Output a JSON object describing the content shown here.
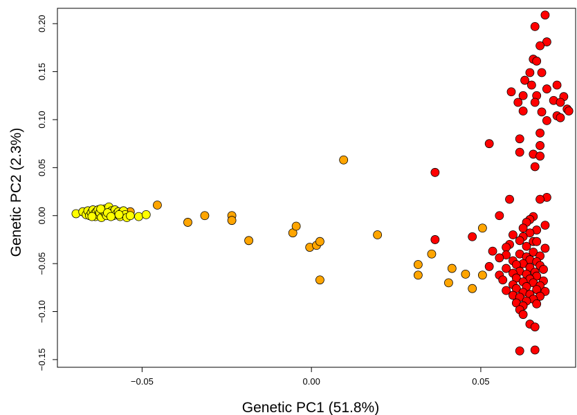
{
  "chart_data": {
    "type": "scatter",
    "xlabel": "Genetic PC1 (51.8%)",
    "ylabel": "Genetic PC2 (2.3%)",
    "xlim": [
      -0.075,
      0.078
    ],
    "ylim": [
      -0.158,
      0.216
    ],
    "xticks": [
      -0.05,
      0.0,
      0.05
    ],
    "xtick_labels": [
      "−0.05",
      "0.00",
      "0.05"
    ],
    "yticks": [
      -0.15,
      -0.1,
      -0.05,
      0.0,
      0.05,
      0.1,
      0.15,
      0.2
    ],
    "ytick_labels": [
      "−0.15",
      "−0.10",
      "−0.05",
      "0.00",
      "0.05",
      "0.10",
      "0.15",
      "0.20"
    ],
    "grid": false,
    "legend": "none",
    "series": [
      {
        "color": "#ff0000",
        "points": [
          [
            0.069,
            0.209
          ],
          [
            0.066,
            0.197
          ],
          [
            0.0695,
            0.181
          ],
          [
            0.0675,
            0.177
          ],
          [
            0.0655,
            0.163
          ],
          [
            0.0665,
            0.161
          ],
          [
            0.0645,
            0.149
          ],
          [
            0.068,
            0.149
          ],
          [
            0.063,
            0.141
          ],
          [
            0.065,
            0.136
          ],
          [
            0.0725,
            0.136
          ],
          [
            0.0695,
            0.132
          ],
          [
            0.059,
            0.129
          ],
          [
            0.0625,
            0.125
          ],
          [
            0.0665,
            0.125
          ],
          [
            0.0745,
            0.124
          ],
          [
            0.0715,
            0.12
          ],
          [
            0.061,
            0.118
          ],
          [
            0.066,
            0.118
          ],
          [
            0.0735,
            0.118
          ],
          [
            0.0755,
            0.111
          ],
          [
            0.076,
            0.109
          ],
          [
            0.0625,
            0.109
          ],
          [
            0.068,
            0.108
          ],
          [
            0.0725,
            0.104
          ],
          [
            0.0735,
            0.102
          ],
          [
            0.0695,
            0.099
          ],
          [
            0.0675,
            0.086
          ],
          [
            0.0615,
            0.08
          ],
          [
            0.0525,
            0.075
          ],
          [
            0.0675,
            0.073
          ],
          [
            0.0615,
            0.066
          ],
          [
            0.0655,
            0.064
          ],
          [
            0.0675,
            0.062
          ],
          [
            0.066,
            0.051
          ],
          [
            0.0365,
            0.045
          ],
          [
            0.0695,
            0.019
          ],
          [
            0.0585,
            0.017
          ],
          [
            0.0675,
            0.017
          ],
          [
            0.0555,
            0.0
          ],
          [
            0.0655,
            -0.001
          ],
          [
            0.0645,
            -0.004
          ],
          [
            0.0635,
            -0.007
          ],
          [
            0.069,
            -0.01
          ],
          [
            0.0625,
            -0.013
          ],
          [
            0.0665,
            -0.015
          ],
          [
            0.0645,
            -0.018
          ],
          [
            0.0595,
            -0.02
          ],
          [
            0.0625,
            -0.022
          ],
          [
            0.0475,
            -0.022
          ],
          [
            0.0365,
            -0.025
          ],
          [
            0.0615,
            -0.026
          ],
          [
            0.0655,
            -0.027
          ],
          [
            0.0665,
            -0.027
          ],
          [
            0.0585,
            -0.03
          ],
          [
            0.0635,
            -0.032
          ],
          [
            0.0575,
            -0.033
          ],
          [
            0.069,
            -0.034
          ],
          [
            0.0535,
            -0.037
          ],
          [
            0.0655,
            -0.038
          ],
          [
            0.0615,
            -0.04
          ],
          [
            0.0575,
            -0.041
          ],
          [
            0.0675,
            -0.042
          ],
          [
            0.0635,
            -0.043
          ],
          [
            0.0555,
            -0.044
          ],
          [
            0.0645,
            -0.046
          ],
          [
            0.0595,
            -0.047
          ],
          [
            0.0665,
            -0.048
          ],
          [
            0.0625,
            -0.05
          ],
          [
            0.0605,
            -0.051
          ],
          [
            0.0675,
            -0.052
          ],
          [
            0.0525,
            -0.053
          ],
          [
            0.0645,
            -0.054
          ],
          [
            0.0575,
            -0.055
          ],
          [
            0.0685,
            -0.056
          ],
          [
            0.0615,
            -0.058
          ],
          [
            0.066,
            -0.059
          ],
          [
            0.0595,
            -0.06
          ],
          [
            0.0635,
            -0.061
          ],
          [
            0.0555,
            -0.062
          ],
          [
            0.0665,
            -0.063
          ],
          [
            0.0605,
            -0.065
          ],
          [
            0.0645,
            -0.066
          ],
          [
            0.0565,
            -0.067
          ],
          [
            0.0685,
            -0.068
          ],
          [
            0.0625,
            -0.069
          ],
          [
            0.0655,
            -0.07
          ],
          [
            0.0595,
            -0.072
          ],
          [
            0.0675,
            -0.073
          ],
          [
            0.0635,
            -0.074
          ],
          [
            0.0605,
            -0.076
          ],
          [
            0.0665,
            -0.077
          ],
          [
            0.0575,
            -0.078
          ],
          [
            0.069,
            -0.079
          ],
          [
            0.0625,
            -0.08
          ],
          [
            0.0645,
            -0.082
          ],
          [
            0.0595,
            -0.083
          ],
          [
            0.0675,
            -0.084
          ],
          [
            0.0615,
            -0.085
          ],
          [
            0.0655,
            -0.087
          ],
          [
            0.0635,
            -0.089
          ],
          [
            0.0605,
            -0.091
          ],
          [
            0.0665,
            -0.092
          ],
          [
            0.0625,
            -0.094
          ],
          [
            0.0615,
            -0.098
          ],
          [
            0.0625,
            -0.103
          ],
          [
            0.0645,
            -0.113
          ],
          [
            0.066,
            -0.116
          ],
          [
            0.0615,
            -0.141
          ],
          [
            0.066,
            -0.14
          ]
        ]
      },
      {
        "color": "#ffa500",
        "points": [
          [
            -0.0455,
            0.011
          ],
          [
            -0.0535,
            0.004
          ],
          [
            -0.0365,
            -0.007
          ],
          [
            -0.0315,
            0.0
          ],
          [
            -0.0235,
            0.0
          ],
          [
            -0.0235,
            -0.005
          ],
          [
            -0.0185,
            -0.026
          ],
          [
            -0.0055,
            -0.018
          ],
          [
            -0.0045,
            -0.011
          ],
          [
            -0.0005,
            -0.033
          ],
          [
            0.0015,
            -0.031
          ],
          [
            0.0025,
            -0.027
          ],
          [
            0.0025,
            -0.067
          ],
          [
            0.0095,
            0.058
          ],
          [
            0.0195,
            -0.02
          ],
          [
            0.0315,
            -0.051
          ],
          [
            0.0315,
            -0.062
          ],
          [
            0.0355,
            -0.04
          ],
          [
            0.0405,
            -0.07
          ],
          [
            0.0415,
            -0.055
          ],
          [
            0.0455,
            -0.061
          ],
          [
            0.0475,
            -0.076
          ],
          [
            0.0505,
            -0.013
          ],
          [
            0.0505,
            -0.062
          ]
        ]
      },
      {
        "color": "#ffff00",
        "points": [
          [
            -0.0695,
            0.002
          ],
          [
            -0.0675,
            0.004
          ],
          [
            -0.0665,
            0.001
          ],
          [
            -0.066,
            0.005
          ],
          [
            -0.0655,
            0.0
          ],
          [
            -0.065,
            0.003
          ],
          [
            -0.0645,
            0.006
          ],
          [
            -0.064,
            0.002
          ],
          [
            -0.0638,
            -0.001
          ],
          [
            -0.0635,
            0.004
          ],
          [
            -0.063,
            0.006
          ],
          [
            -0.0628,
            0.001
          ],
          [
            -0.0625,
            0.003
          ],
          [
            -0.062,
            -0.002
          ],
          [
            -0.0615,
            0.005
          ],
          [
            -0.061,
            0.007
          ],
          [
            -0.0608,
            0.002
          ],
          [
            -0.0605,
            0.0
          ],
          [
            -0.06,
            0.004
          ],
          [
            -0.0598,
            0.009
          ],
          [
            -0.0595,
            0.002
          ],
          [
            -0.059,
            0.005
          ],
          [
            -0.0588,
            0.003
          ],
          [
            -0.0585,
            0.0
          ],
          [
            -0.058,
            0.006
          ],
          [
            -0.0575,
            0.002
          ],
          [
            -0.057,
            0.004
          ],
          [
            -0.0565,
            -0.001
          ],
          [
            -0.056,
            0.003
          ],
          [
            -0.0555,
            0.005
          ],
          [
            -0.055,
            0.001
          ],
          [
            -0.0545,
            -0.002
          ],
          [
            -0.0535,
            0.0
          ],
          [
            -0.051,
            -0.001
          ],
          [
            -0.0488,
            0.001
          ],
          [
            -0.0648,
            -0.001
          ],
          [
            -0.0622,
            0.007
          ],
          [
            -0.0602,
            0.003
          ],
          [
            -0.0592,
            -0.001
          ],
          [
            -0.0568,
            0.001
          ]
        ]
      }
    ]
  }
}
